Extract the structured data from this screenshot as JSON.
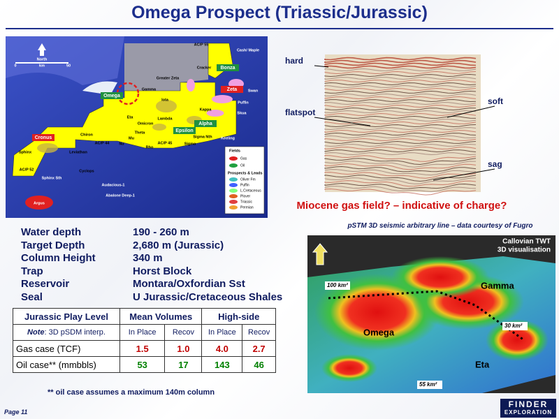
{
  "header": {
    "title": "Omega Prospect (Triassic/Jurassic)"
  },
  "map": {
    "labels": [
      "AC/P 55",
      "Cash/ Maple",
      "North",
      "0",
      "km",
      "50",
      "Cracker",
      "Bonza",
      "Greater Zeta",
      "Zeta",
      "Swan",
      "Gamma",
      "Omega",
      "Iota",
      "Puffin",
      "Kappa",
      "Skua",
      "Eta",
      "Omicron",
      "Lambda",
      "Alpha",
      "Mu",
      "Theta",
      "Epsilon",
      "Sigma Nth",
      "Keeling",
      "Chiron",
      "Cronus",
      "Nu",
      "AC/P 44",
      "AC/P 45",
      "Sigma",
      "Rho",
      "Leviathan",
      "Sphinx",
      "AC/P 52",
      "Cyclops",
      "Sphinx Sth",
      "Argus",
      "Audacious-1",
      "Abalone Deep-1"
    ],
    "legend": {
      "fields": "Fields",
      "field_items": [
        "Gas",
        "Oil"
      ],
      "prospects": "Prospects & Leads",
      "prospect_items": [
        "Oliver Fm",
        "Puffin",
        "L.Cretaceous",
        "Plover",
        "Triassic",
        "Permian"
      ]
    }
  },
  "seismic": {
    "annotations": [
      "hard",
      "flatspot",
      "soft",
      "sag"
    ],
    "caption": "Miocene gas field? – indicative of charge?",
    "credit": "pSTM 3D seismic arbitrary line – data courtesy of Fugro"
  },
  "visualisation": {
    "title": [
      "Callovian TWT",
      "3D visualisation"
    ],
    "labels": [
      "100 km²",
      "Gamma",
      "Omega",
      "30 km²",
      "Eta",
      "55 km²"
    ]
  },
  "properties": [
    {
      "label": "Water depth",
      "value": "190 - 260 m"
    },
    {
      "label": "Target Depth",
      "value": "2,680 m (Jurassic)"
    },
    {
      "label": "Column Height",
      "value": "340 m"
    },
    {
      "label": "Trap",
      "value": "Horst Block"
    },
    {
      "label": "Reservoir",
      "value": "Montara/Oxfordian Sst"
    },
    {
      "label": "Seal",
      "value": "U Jurassic/Cretaceous Shales"
    }
  ],
  "table": {
    "header": [
      "Jurassic Play Level",
      "Mean Volumes",
      "High-side"
    ],
    "note": {
      "keyword": "Note",
      "text": ": 3D pSDM interp."
    },
    "subheader": [
      "In Place",
      "Recov",
      "In Place",
      "Recov"
    ],
    "rows": [
      [
        "Gas case (TCF)",
        "1.5",
        "1.0",
        "4.0",
        "2.7"
      ],
      [
        "Oil case** (mmbbls)",
        "53",
        "17",
        "143",
        "46"
      ]
    ]
  },
  "footnote": "**  oil case assumes a maximum 140m column",
  "footer": {
    "page": "Page 11",
    "logo": [
      "FINDER",
      "EXPLORATION"
    ]
  }
}
